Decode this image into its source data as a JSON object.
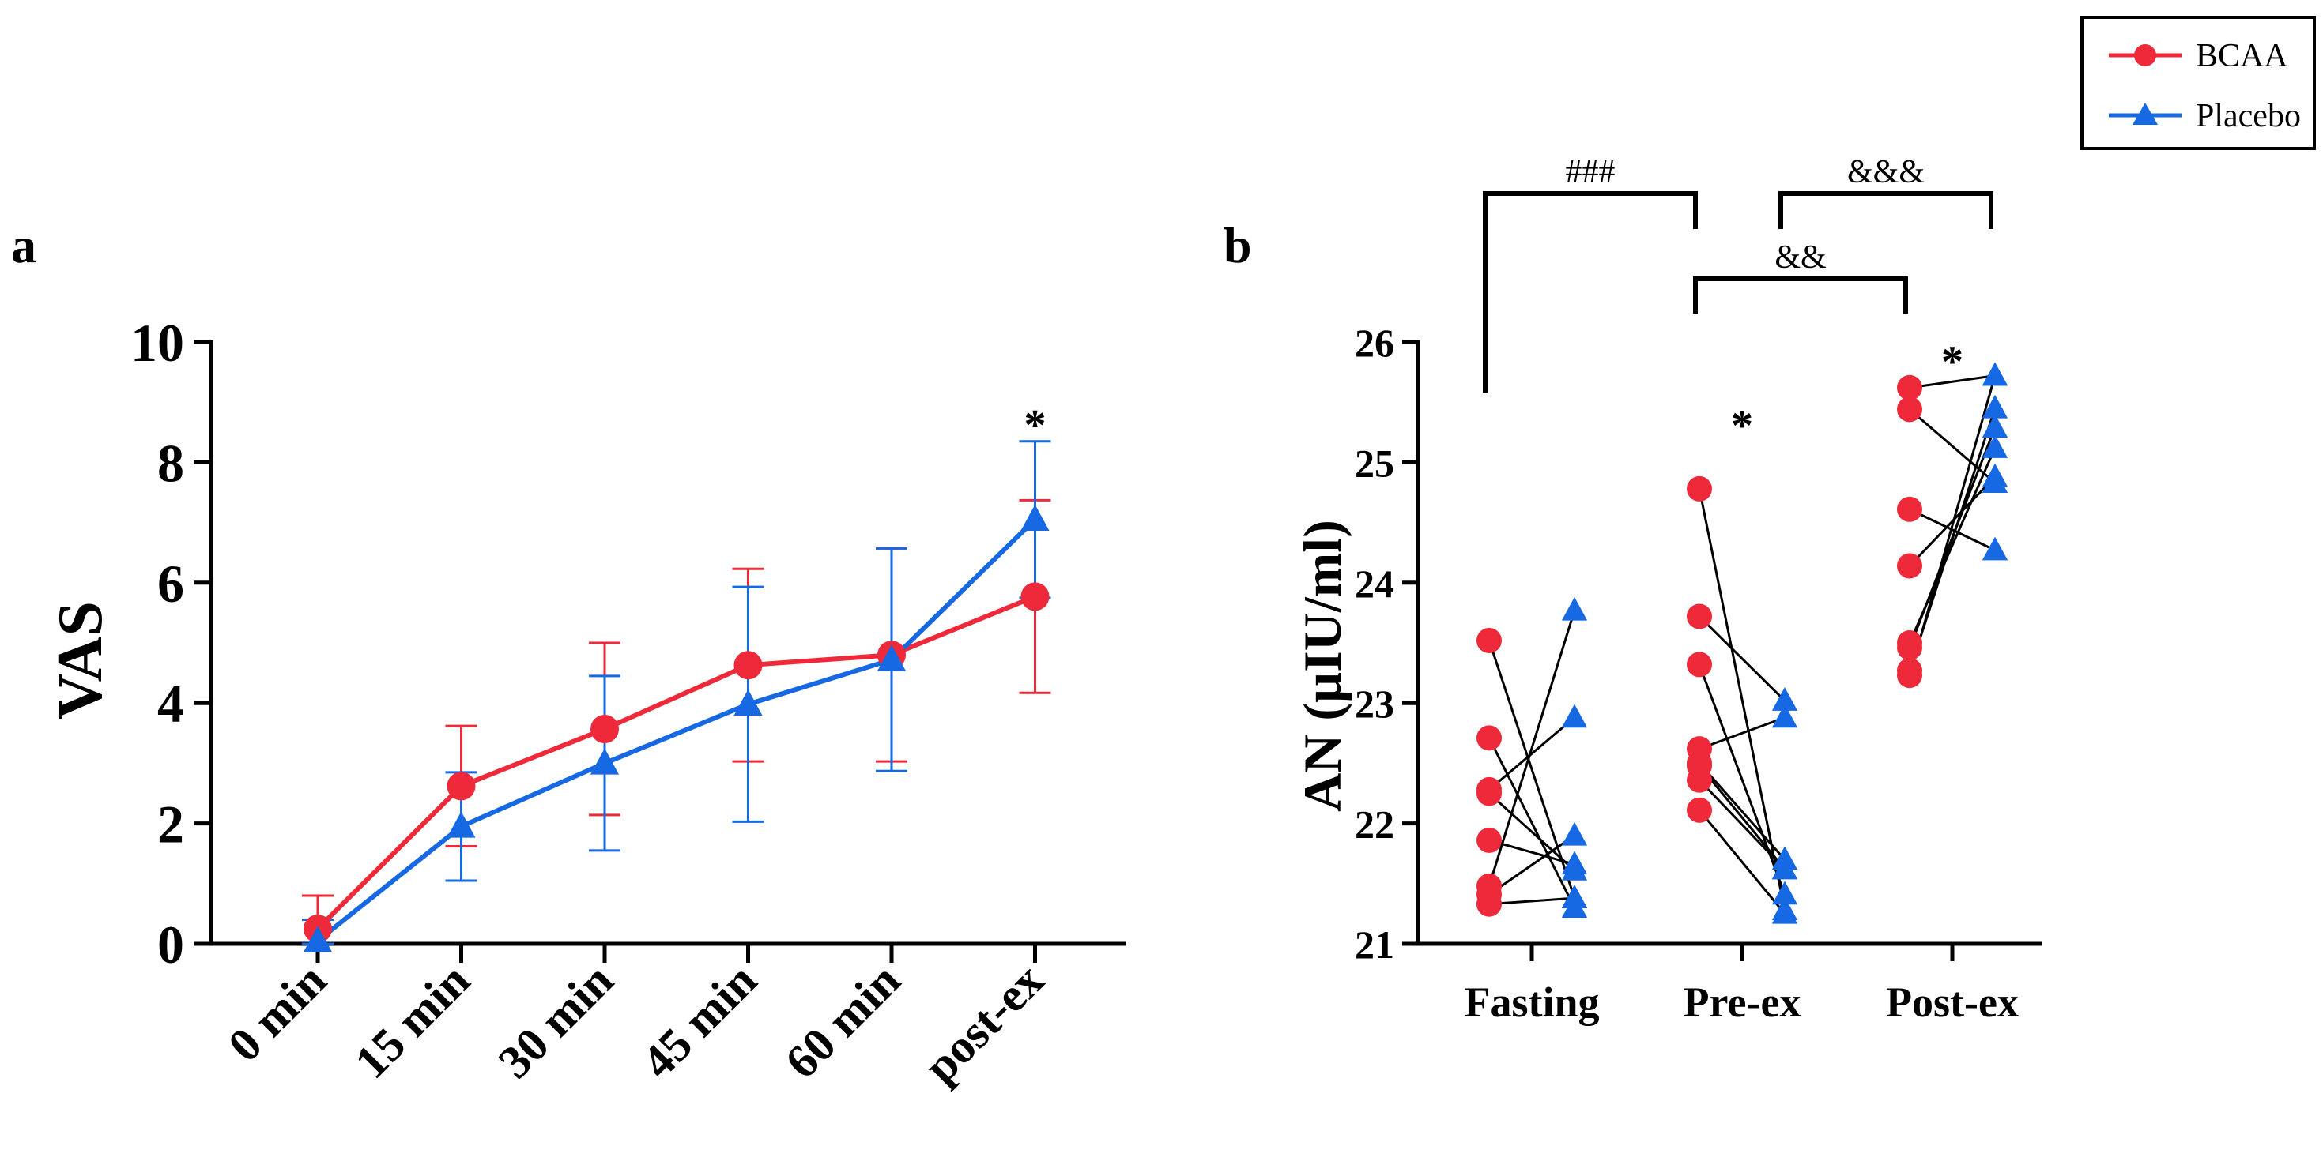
{
  "colors": {
    "bcaa": "#ee2a3a",
    "placebo": "#1668e3",
    "axis": "#000000",
    "pair": "#000000"
  },
  "legend": {
    "entries": [
      {
        "label": "BCAA",
        "marker": "circle",
        "color": "#ee2a3a"
      },
      {
        "label": "Placebo",
        "marker": "triangle",
        "color": "#1668e3"
      }
    ]
  },
  "chart_data": [
    {
      "panel_label": "a",
      "type": "line",
      "title": "",
      "xlabel": "",
      "ylabel": "VAS",
      "ylim": [
        0,
        10
      ],
      "yticks": [
        "0",
        "2",
        "4",
        "6",
        "8",
        "10"
      ],
      "categories": [
        "0 min",
        "15 min",
        "30 min",
        "45 min",
        "60 min",
        "post-ex"
      ],
      "series": [
        {
          "name": "BCAA",
          "values": [
            0.25,
            2.62,
            3.57,
            4.63,
            4.8,
            5.77
          ],
          "err": [
            0.55,
            1.0,
            1.43,
            1.6,
            1.77,
            1.6
          ]
        },
        {
          "name": "Placebo",
          "values": [
            0.05,
            1.95,
            3.0,
            3.98,
            4.72,
            7.05
          ],
          "err": [
            0.35,
            0.9,
            1.45,
            1.95,
            1.85,
            1.3
          ]
        }
      ],
      "annotations": [
        {
          "text": "*",
          "category": "post-ex",
          "y": 8.9
        }
      ]
    },
    {
      "panel_label": "b",
      "type": "scatter",
      "title": "",
      "xlabel": "",
      "ylabel": "AN (µIU/ml)",
      "ylim": [
        21,
        26
      ],
      "yticks": [
        "21",
        "22",
        "23",
        "24",
        "25",
        "26"
      ],
      "categories": [
        "Fasting",
        "Pre-ex",
        "Post-ex"
      ],
      "paired": [
        {
          "category": "Fasting",
          "bcaa": [
            23.52,
            22.71,
            22.28,
            22.25,
            21.86,
            21.48,
            21.41,
            21.33
          ],
          "placebo": [
            21.38,
            21.3,
            22.88,
            21.61,
            21.66,
            23.77,
            21.9,
            21.38
          ]
        },
        {
          "category": "Pre-ex",
          "bcaa": [
            24.78,
            23.72,
            23.32,
            22.62,
            22.5,
            22.48,
            22.36,
            22.11
          ],
          "placebo": [
            21.28,
            23.02,
            21.41,
            22.88,
            21.7,
            21.62,
            21.62,
            21.25
          ]
        },
        {
          "category": "Post-ex",
          "bcaa": [
            25.62,
            25.44,
            24.61,
            24.14,
            23.5,
            23.46,
            23.27,
            23.23
          ],
          "placebo": [
            25.72,
            24.83,
            24.27,
            24.88,
            25.12,
            25.29,
            25.45,
            25.72
          ]
        }
      ],
      "annotations": [
        {
          "text": "*",
          "category": "Pre-ex",
          "y": 25.42
        },
        {
          "text": "*",
          "category": "Post-ex",
          "y": 25.95
        }
      ],
      "brackets": [
        {
          "from": "Fasting",
          "to": "Pre-ex",
          "label": "###"
        },
        {
          "from": "Pre-ex",
          "to": "Post-ex",
          "label": "&&"
        },
        {
          "from": "Pre-ex",
          "to": "Post-ex",
          "label": "&&&"
        }
      ]
    }
  ]
}
